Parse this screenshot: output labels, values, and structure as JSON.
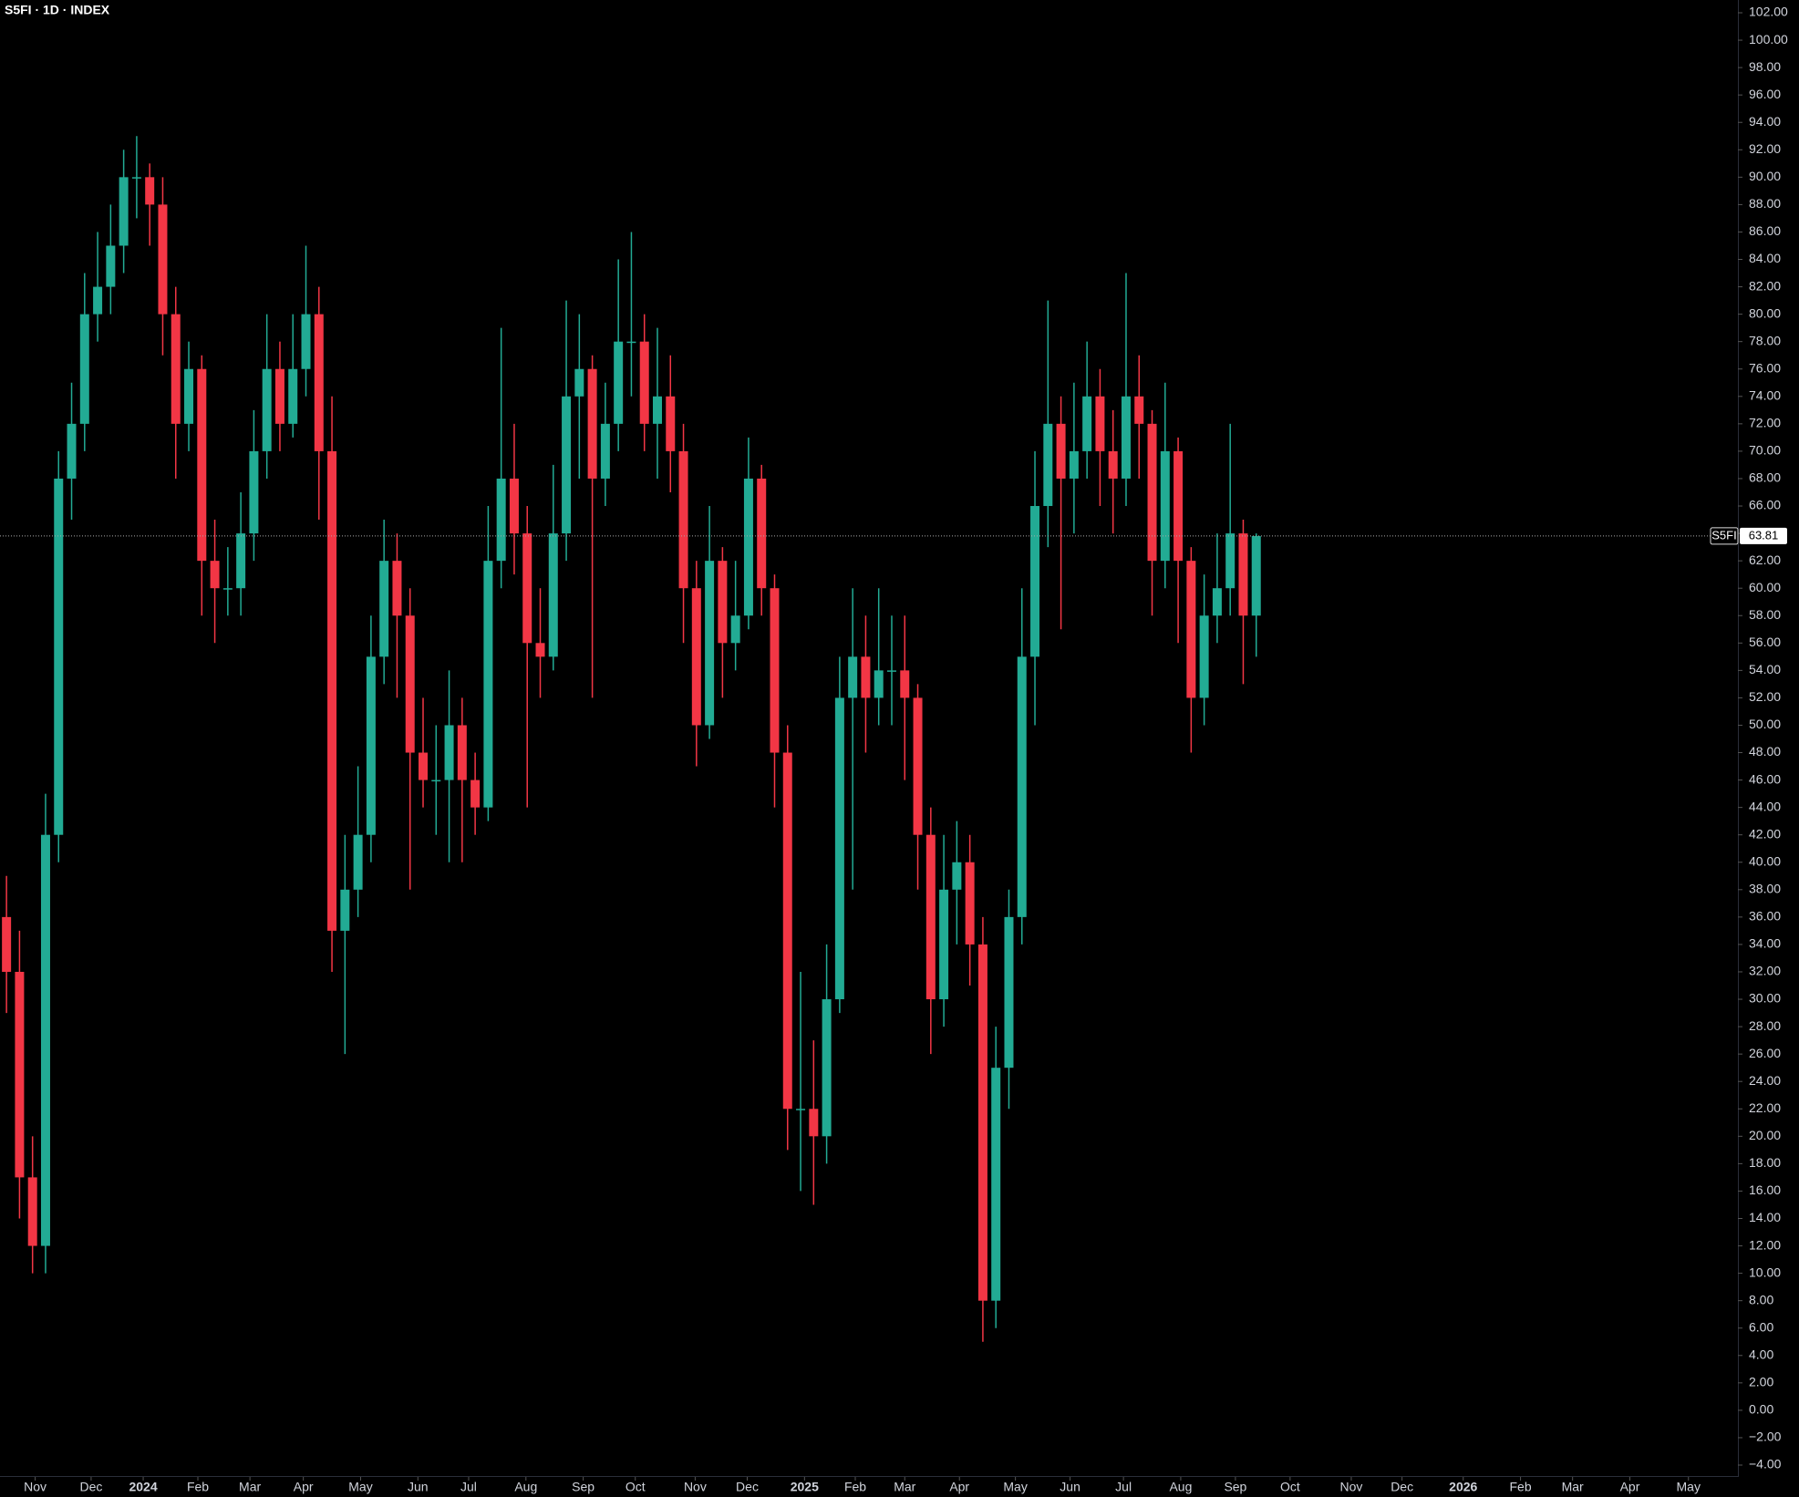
{
  "chart_data": {
    "type": "candlestick",
    "title": "S5FI · 1D · INDEX",
    "symbol": "S5FI",
    "open": [
      36,
      32,
      17,
      12,
      42,
      68,
      72,
      80,
      82,
      85,
      90,
      90,
      88,
      80,
      72,
      76,
      62,
      60,
      60,
      64,
      70,
      76,
      72,
      76,
      80,
      70,
      35,
      38,
      42,
      55,
      62,
      58,
      48,
      46,
      46,
      50,
      46,
      44,
      62,
      68,
      64,
      56,
      55,
      64,
      74,
      76,
      68,
      72,
      78,
      78,
      72,
      74,
      70,
      60,
      50,
      62,
      56,
      58,
      68,
      60,
      48,
      22,
      22,
      20,
      30,
      52,
      55,
      52,
      54,
      54,
      52,
      42,
      30,
      38,
      40,
      34,
      8,
      25,
      36,
      55,
      66,
      72,
      68,
      70,
      74,
      70,
      68,
      74,
      72,
      62,
      70,
      62,
      52,
      58,
      60,
      64,
      58
    ],
    "high": [
      39,
      35,
      20,
      45,
      70,
      75,
      83,
      86,
      88,
      92,
      93,
      91,
      90,
      82,
      78,
      77,
      65,
      63,
      67,
      73,
      80,
      78,
      80,
      85,
      82,
      74,
      42,
      47,
      58,
      65,
      64,
      60,
      52,
      50,
      54,
      52,
      48,
      66,
      79,
      72,
      66,
      60,
      69,
      81,
      80,
      77,
      75,
      84,
      86,
      80,
      79,
      77,
      72,
      62,
      66,
      63,
      62,
      71,
      69,
      61,
      50,
      32,
      27,
      34,
      55,
      60,
      58,
      60,
      58,
      58,
      53,
      44,
      42,
      43,
      42,
      36,
      28,
      38,
      60,
      70,
      81,
      74,
      75,
      78,
      76,
      73,
      83,
      77,
      73,
      75,
      71,
      63,
      61,
      64,
      72,
      65,
      64
    ],
    "low": [
      29,
      14,
      10,
      10,
      40,
      65,
      70,
      78,
      80,
      83,
      87,
      85,
      77,
      68,
      70,
      58,
      56,
      58,
      58,
      62,
      68,
      70,
      71,
      74,
      65,
      32,
      26,
      36,
      40,
      53,
      52,
      38,
      44,
      42,
      40,
      40,
      42,
      43,
      60,
      61,
      44,
      52,
      54,
      62,
      68,
      52,
      66,
      70,
      74,
      70,
      68,
      67,
      56,
      47,
      49,
      52,
      54,
      57,
      58,
      44,
      19,
      16,
      15,
      18,
      29,
      38,
      48,
      50,
      50,
      46,
      38,
      26,
      28,
      34,
      31,
      5,
      6,
      22,
      34,
      50,
      63,
      57,
      64,
      68,
      66,
      64,
      66,
      68,
      58,
      60,
      56,
      48,
      50,
      56,
      58,
      53,
      55
    ],
    "close": [
      32,
      17,
      12,
      42,
      68,
      72,
      80,
      82,
      85,
      90,
      90,
      88,
      80,
      72,
      76,
      62,
      60,
      60,
      64,
      70,
      76,
      72,
      76,
      80,
      70,
      35,
      38,
      42,
      55,
      62,
      58,
      48,
      46,
      46,
      50,
      46,
      44,
      62,
      68,
      64,
      56,
      55,
      64,
      74,
      76,
      68,
      72,
      78,
      78,
      72,
      74,
      70,
      60,
      50,
      62,
      56,
      58,
      68,
      60,
      48,
      22,
      22,
      20,
      30,
      52,
      55,
      52,
      54,
      54,
      52,
      42,
      30,
      38,
      40,
      34,
      8,
      25,
      36,
      55,
      66,
      72,
      68,
      70,
      74,
      70,
      68,
      74,
      72,
      62,
      70,
      62,
      52,
      58,
      60,
      64,
      58,
      63.81
    ],
    "up_color": "#22ab94",
    "down_color": "#f23645",
    "xlim": [
      0,
      133.5
    ],
    "xticks": [
      {
        "value": 2.7,
        "label": "Nov"
      },
      {
        "value": 7.0,
        "label": "Dec"
      },
      {
        "value": 11.0,
        "label": "2024",
        "bold": true
      },
      {
        "value": 15.2,
        "label": "Feb"
      },
      {
        "value": 19.2,
        "label": "Mar"
      },
      {
        "value": 23.3,
        "label": "Apr"
      },
      {
        "value": 27.7,
        "label": "May"
      },
      {
        "value": 32.1,
        "label": "Jun"
      },
      {
        "value": 36.0,
        "label": "Jul"
      },
      {
        "value": 40.4,
        "label": "Aug"
      },
      {
        "value": 44.8,
        "label": "Sep"
      },
      {
        "value": 48.8,
        "label": "Oct"
      },
      {
        "value": 53.4,
        "label": "Nov"
      },
      {
        "value": 57.4,
        "label": "Dec"
      },
      {
        "value": 61.8,
        "label": "2025",
        "bold": true
      },
      {
        "value": 65.7,
        "label": "Feb"
      },
      {
        "value": 69.5,
        "label": "Mar"
      },
      {
        "value": 73.7,
        "label": "Apr"
      },
      {
        "value": 78.0,
        "label": "May"
      },
      {
        "value": 82.2,
        "label": "Jun"
      },
      {
        "value": 86.3,
        "label": "Jul"
      },
      {
        "value": 90.7,
        "label": "Aug"
      },
      {
        "value": 94.9,
        "label": "Sep"
      },
      {
        "value": 99.1,
        "label": "Oct"
      },
      {
        "value": 103.8,
        "label": "Nov"
      },
      {
        "value": 107.7,
        "label": "Dec"
      },
      {
        "value": 112.4,
        "label": "2026",
        "bold": true
      },
      {
        "value": 116.8,
        "label": "Feb"
      },
      {
        "value": 120.8,
        "label": "Mar"
      },
      {
        "value": 125.2,
        "label": "Apr"
      },
      {
        "value": 129.7,
        "label": "May"
      }
    ],
    "ylim": [
      -4,
      102
    ],
    "yticks": [
      {
        "value": 102,
        "label": "102.00"
      },
      {
        "value": 100,
        "label": "100.00"
      },
      {
        "value": 98,
        "label": "98.00"
      },
      {
        "value": 96,
        "label": "96.00"
      },
      {
        "value": 94,
        "label": "94.00"
      },
      {
        "value": 92,
        "label": "92.00"
      },
      {
        "value": 90,
        "label": "90.00"
      },
      {
        "value": 88,
        "label": "88.00"
      },
      {
        "value": 86,
        "label": "86.00"
      },
      {
        "value": 84,
        "label": "84.00"
      },
      {
        "value": 82,
        "label": "82.00"
      },
      {
        "value": 80,
        "label": "80.00"
      },
      {
        "value": 78,
        "label": "78.00"
      },
      {
        "value": 76,
        "label": "76.00"
      },
      {
        "value": 74,
        "label": "74.00"
      },
      {
        "value": 72,
        "label": "72.00"
      },
      {
        "value": 70,
        "label": "70.00"
      },
      {
        "value": 68,
        "label": "68.00"
      },
      {
        "value": 66,
        "label": "66.00"
      },
      {
        "value": 64,
        "label": "64.00"
      },
      {
        "value": 62,
        "label": "62.00"
      },
      {
        "value": 60,
        "label": "60.00"
      },
      {
        "value": 58,
        "label": "58.00"
      },
      {
        "value": 56,
        "label": "56.00"
      },
      {
        "value": 54,
        "label": "54.00"
      },
      {
        "value": 52,
        "label": "52.00"
      },
      {
        "value": 50,
        "label": "50.00"
      },
      {
        "value": 48,
        "label": "48.00"
      },
      {
        "value": 46,
        "label": "46.00"
      },
      {
        "value": 44,
        "label": "44.00"
      },
      {
        "value": 42,
        "label": "42.00"
      },
      {
        "value": 40,
        "label": "40.00"
      },
      {
        "value": 38,
        "label": "38.00"
      },
      {
        "value": 36,
        "label": "36.00"
      },
      {
        "value": 34,
        "label": "34.00"
      },
      {
        "value": 32,
        "label": "32.00"
      },
      {
        "value": 30,
        "label": "30.00"
      },
      {
        "value": 28,
        "label": "28.00"
      },
      {
        "value": 26,
        "label": "26.00"
      },
      {
        "value": 24,
        "label": "24.00"
      },
      {
        "value": 22,
        "label": "22.00"
      },
      {
        "value": 20,
        "label": "20.00"
      },
      {
        "value": 18,
        "label": "18.00"
      },
      {
        "value": 16,
        "label": "16.00"
      },
      {
        "value": 14,
        "label": "14.00"
      },
      {
        "value": 12,
        "label": "12.00"
      },
      {
        "value": 10,
        "label": "10.00"
      },
      {
        "value": 8,
        "label": "8.00"
      },
      {
        "value": 6,
        "label": "6.00"
      },
      {
        "value": 4,
        "label": "4.00"
      },
      {
        "value": 2,
        "label": "2.00"
      },
      {
        "value": 0,
        "label": "0.00"
      },
      {
        "value": -2,
        "label": "−2.00"
      },
      {
        "value": -4,
        "label": "−4.00"
      }
    ],
    "grid": false,
    "last_price_line": true
  }
}
